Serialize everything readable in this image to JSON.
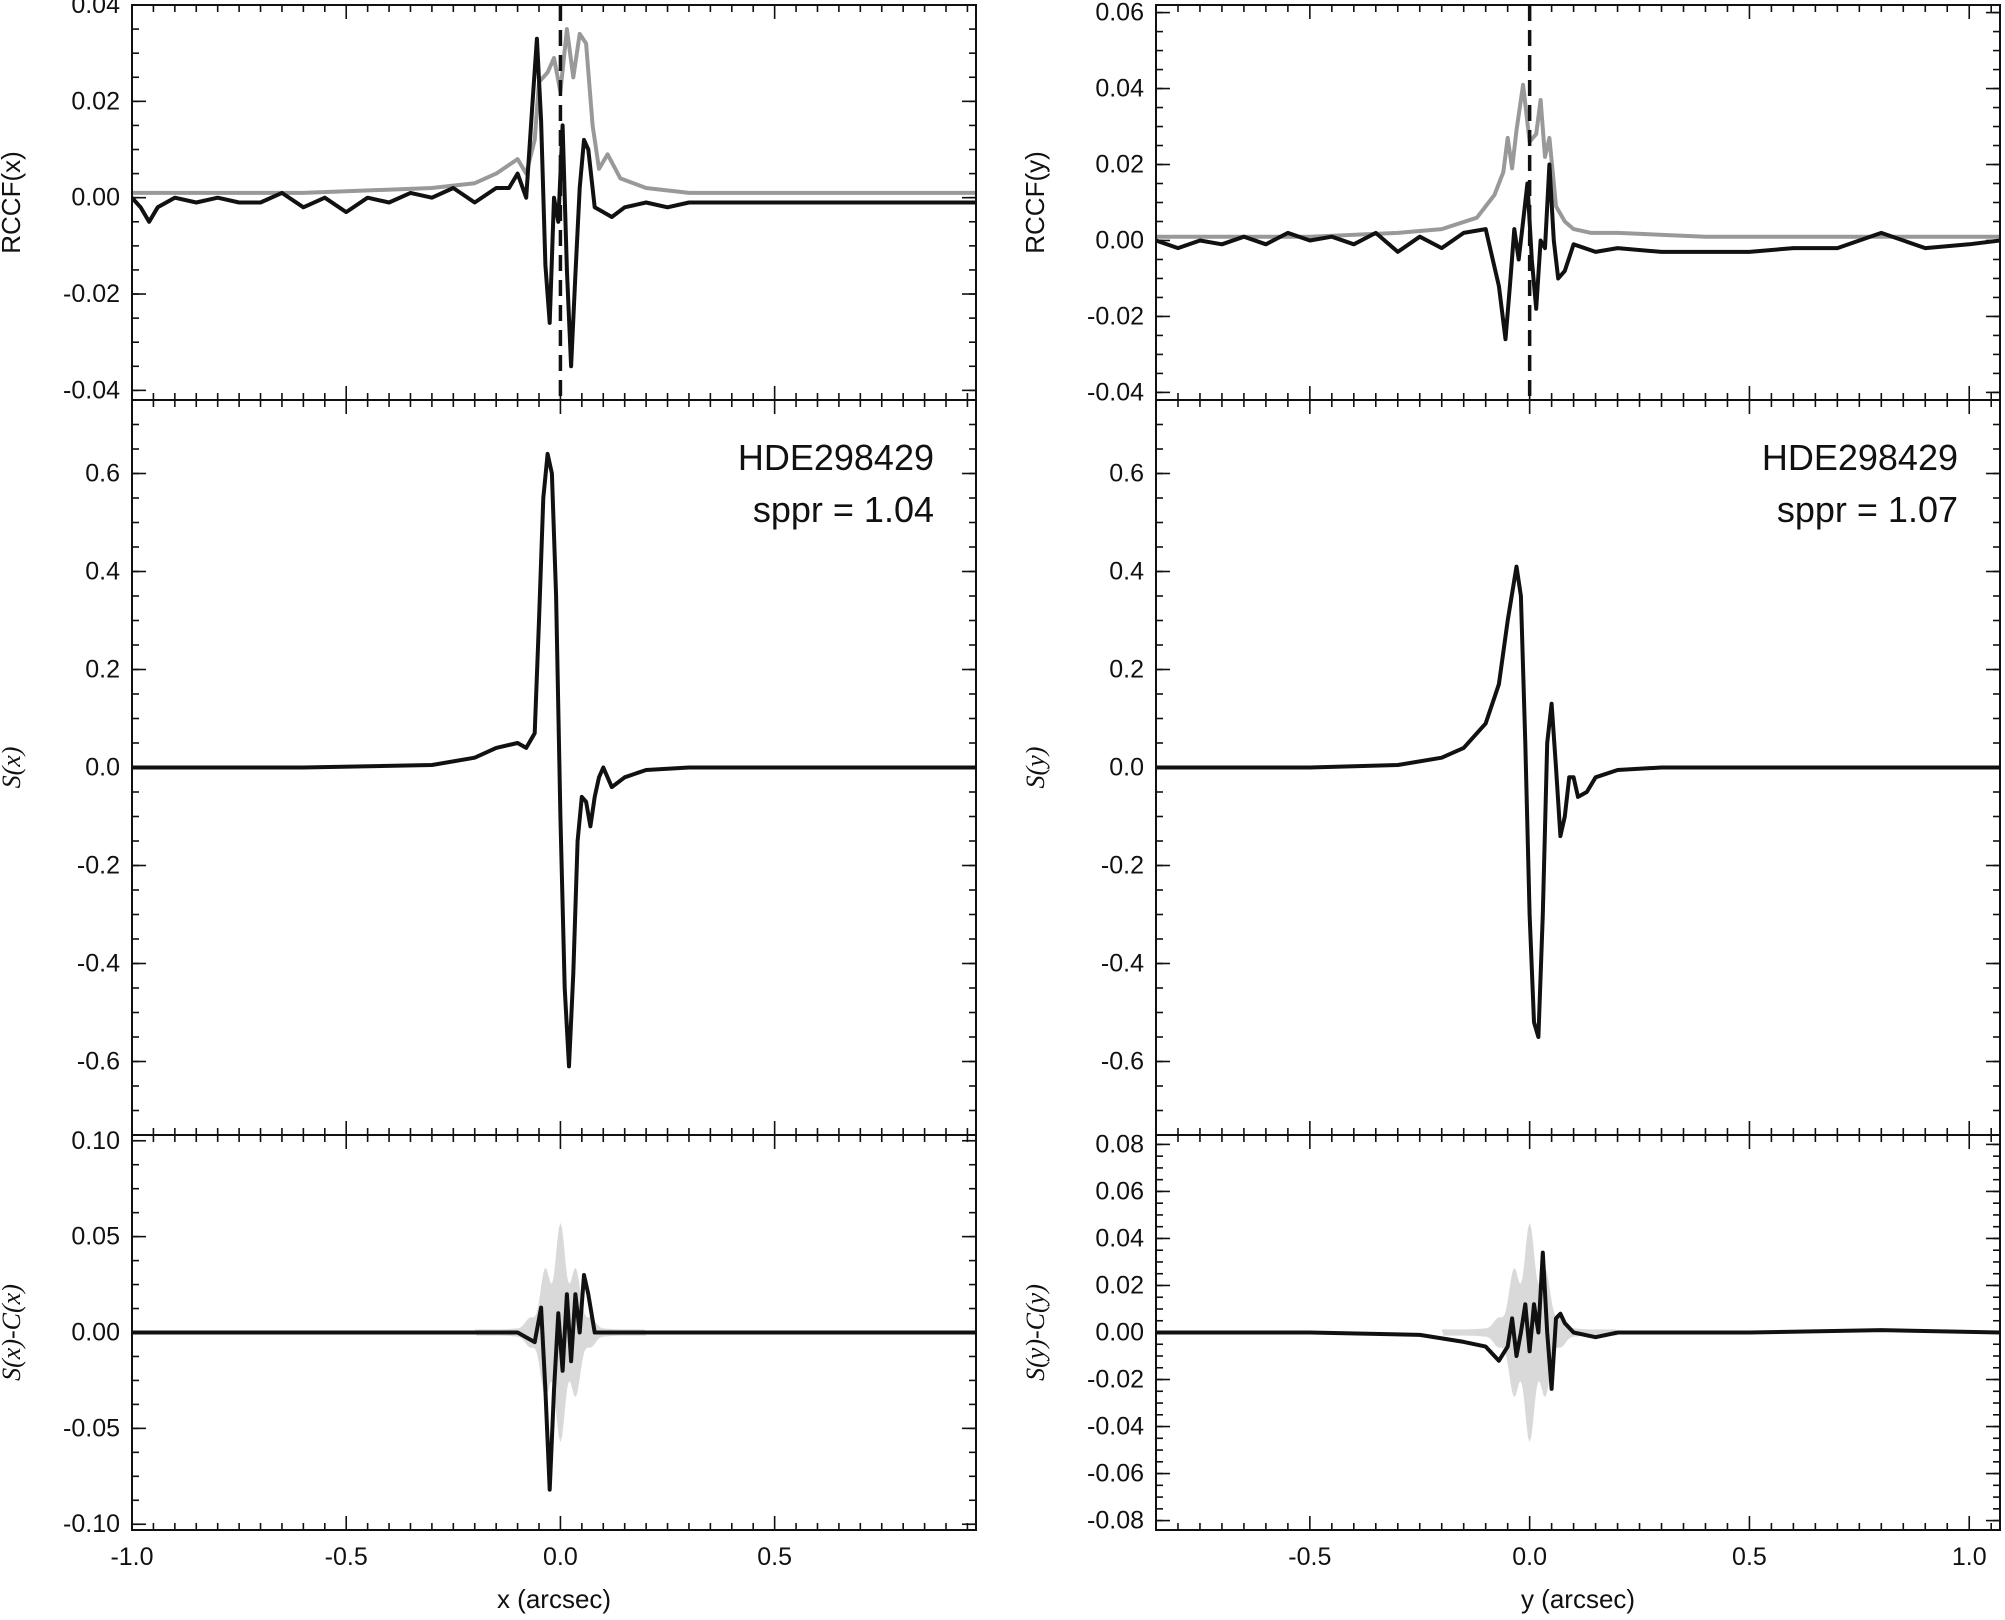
{
  "chart_data": [
    {
      "type": "line",
      "panel": "top-left",
      "ylabel": "RCCF(x)",
      "xlim": [
        -1.0,
        0.97
      ],
      "ylim": [
        -0.042,
        0.04
      ],
      "yticks": [
        "-0.04",
        "-0.02",
        "0.00",
        "0.02",
        "0.04"
      ],
      "vline_x": 0.0,
      "series": [
        {
          "color": "#999999",
          "x": [
            -1.0,
            -0.6,
            -0.3,
            -0.2,
            -0.15,
            -0.1,
            -0.08,
            -0.06,
            -0.05,
            -0.03,
            -0.015,
            0.0,
            0.015,
            0.03,
            0.045,
            0.06,
            0.075,
            0.09,
            0.11,
            0.14,
            0.2,
            0.3,
            0.5,
            0.97
          ],
          "y": [
            0.001,
            0.001,
            0.002,
            0.003,
            0.005,
            0.008,
            0.005,
            0.012,
            0.024,
            0.026,
            0.029,
            0.022,
            0.035,
            0.025,
            0.034,
            0.032,
            0.015,
            0.006,
            0.009,
            0.004,
            0.002,
            0.001,
            0.001,
            0.001
          ]
        },
        {
          "color": "#111111",
          "x": [
            -1.0,
            -0.98,
            -0.96,
            -0.94,
            -0.9,
            -0.85,
            -0.8,
            -0.75,
            -0.7,
            -0.65,
            -0.6,
            -0.55,
            -0.5,
            -0.45,
            -0.4,
            -0.35,
            -0.3,
            -0.25,
            -0.2,
            -0.15,
            -0.12,
            -0.1,
            -0.08,
            -0.065,
            -0.055,
            -0.045,
            -0.035,
            -0.025,
            -0.015,
            -0.005,
            0.005,
            0.015,
            0.025,
            0.035,
            0.045,
            0.055,
            0.065,
            0.08,
            0.1,
            0.12,
            0.15,
            0.2,
            0.25,
            0.3,
            0.4,
            0.5,
            0.6,
            0.7,
            0.8,
            0.9,
            0.97
          ],
          "y": [
            0.0,
            -0.002,
            -0.005,
            -0.002,
            0.0,
            -0.001,
            0.0,
            -0.001,
            -0.001,
            0.001,
            -0.002,
            0.0,
            -0.003,
            0.0,
            -0.001,
            0.001,
            0.0,
            0.002,
            -0.001,
            0.002,
            0.002,
            0.005,
            0.0,
            0.02,
            0.033,
            0.016,
            -0.014,
            -0.026,
            0.0,
            -0.005,
            0.015,
            -0.015,
            -0.035,
            -0.016,
            0.002,
            0.012,
            0.01,
            -0.002,
            -0.003,
            -0.004,
            -0.002,
            -0.001,
            -0.002,
            -0.001,
            -0.001,
            -0.001,
            -0.001,
            -0.001,
            -0.001,
            -0.001,
            -0.001
          ]
        }
      ]
    },
    {
      "type": "line",
      "panel": "middle-left",
      "ylabel": "S(x)",
      "xlim": [
        -1.0,
        0.97
      ],
      "ylim": [
        -0.75,
        0.75
      ],
      "yticks": [
        "-0.6",
        "-0.4",
        "-0.2",
        "0.0",
        "0.2",
        "0.4",
        "0.6"
      ],
      "annotations": [
        "HDE298429",
        "sppr = 1.04"
      ],
      "series": [
        {
          "color": "#111111",
          "x": [
            -1.0,
            -0.6,
            -0.3,
            -0.2,
            -0.15,
            -0.1,
            -0.08,
            -0.06,
            -0.05,
            -0.04,
            -0.03,
            -0.02,
            -0.01,
            0.0,
            0.01,
            0.02,
            0.03,
            0.04,
            0.05,
            0.06,
            0.07,
            0.08,
            0.09,
            0.1,
            0.12,
            0.15,
            0.2,
            0.3,
            0.5,
            0.97
          ],
          "y": [
            0.0,
            0.0,
            0.005,
            0.02,
            0.04,
            0.05,
            0.04,
            0.07,
            0.3,
            0.55,
            0.64,
            0.6,
            0.35,
            -0.1,
            -0.45,
            -0.61,
            -0.42,
            -0.15,
            -0.06,
            -0.07,
            -0.12,
            -0.06,
            -0.02,
            0.0,
            -0.04,
            -0.02,
            -0.005,
            0.0,
            0.0,
            0.0
          ]
        }
      ]
    },
    {
      "type": "line",
      "panel": "bottom-left",
      "ylabel": "S(x)-C(x)",
      "xlabel": "x (arcsec)",
      "xlim": [
        -1.0,
        0.97
      ],
      "ylim": [
        -0.103,
        0.103
      ],
      "xticks": [
        "-1.0",
        "-0.5",
        "0.0",
        "0.5"
      ],
      "yticks": [
        "-0.10",
        "-0.05",
        "0.00",
        "0.05",
        "0.10"
      ],
      "series": [
        {
          "color": "#111111",
          "x": [
            -1.0,
            -0.5,
            -0.1,
            -0.06,
            -0.045,
            -0.035,
            -0.025,
            -0.015,
            -0.005,
            0.005,
            0.015,
            0.025,
            0.035,
            0.045,
            0.055,
            0.065,
            0.08,
            0.1,
            0.2,
            0.5,
            0.97
          ],
          "y": [
            0.0,
            0.0,
            0.0,
            -0.005,
            0.013,
            -0.03,
            -0.082,
            -0.03,
            0.01,
            -0.02,
            0.02,
            -0.015,
            0.02,
            0.0,
            0.03,
            0.02,
            0.0,
            0.0,
            0.0,
            0.0,
            0.0
          ]
        }
      ]
    },
    {
      "type": "line",
      "panel": "top-right",
      "ylabel": "RCCF(y)",
      "xlim": [
        -0.85,
        1.07
      ],
      "ylim": [
        -0.042,
        0.062
      ],
      "yticks": [
        "-0.04",
        "-0.02",
        "0.00",
        "0.02",
        "0.04",
        "0.06"
      ],
      "vline_x": 0.0,
      "series": [
        {
          "color": "#999999",
          "x": [
            -0.85,
            -0.5,
            -0.3,
            -0.2,
            -0.12,
            -0.08,
            -0.06,
            -0.05,
            -0.04,
            -0.03,
            -0.015,
            0.0,
            0.015,
            0.025,
            0.035,
            0.045,
            0.06,
            0.08,
            0.1,
            0.14,
            0.2,
            0.4,
            0.7,
            1.07
          ],
          "y": [
            0.001,
            0.001,
            0.002,
            0.003,
            0.006,
            0.012,
            0.018,
            0.027,
            0.019,
            0.029,
            0.041,
            0.026,
            0.028,
            0.037,
            0.022,
            0.027,
            0.009,
            0.005,
            0.003,
            0.002,
            0.002,
            0.001,
            0.001,
            0.001
          ]
        },
        {
          "color": "#111111",
          "x": [
            -0.85,
            -0.8,
            -0.75,
            -0.7,
            -0.65,
            -0.6,
            -0.55,
            -0.5,
            -0.45,
            -0.4,
            -0.35,
            -0.3,
            -0.25,
            -0.2,
            -0.15,
            -0.1,
            -0.07,
            -0.055,
            -0.045,
            -0.035,
            -0.025,
            -0.015,
            -0.005,
            0.005,
            0.015,
            0.025,
            0.035,
            0.045,
            0.055,
            0.065,
            0.08,
            0.1,
            0.15,
            0.2,
            0.3,
            0.4,
            0.5,
            0.6,
            0.7,
            0.8,
            0.9,
            1.0,
            1.07
          ],
          "y": [
            0.0,
            -0.002,
            0.0,
            -0.001,
            0.001,
            -0.001,
            0.002,
            0.0,
            0.001,
            -0.001,
            0.002,
            -0.003,
            0.001,
            -0.002,
            0.002,
            0.003,
            -0.012,
            -0.026,
            -0.012,
            0.003,
            -0.005,
            0.005,
            0.015,
            -0.005,
            -0.018,
            0.0,
            -0.002,
            0.02,
            0.0,
            -0.01,
            -0.008,
            -0.001,
            -0.003,
            -0.002,
            -0.003,
            -0.003,
            -0.003,
            -0.002,
            -0.002,
            0.002,
            -0.002,
            -0.001,
            0.0
          ]
        }
      ]
    },
    {
      "type": "line",
      "panel": "middle-right",
      "ylabel": "S(y)",
      "xlim": [
        -0.85,
        1.07
      ],
      "ylim": [
        -0.75,
        0.75
      ],
      "yticks": [
        "-0.6",
        "-0.4",
        "-0.2",
        "0.0",
        "0.2",
        "0.4",
        "0.6"
      ],
      "annotations": [
        "HDE298429",
        "sppr = 1.07"
      ],
      "series": [
        {
          "color": "#111111",
          "x": [
            -0.85,
            -0.5,
            -0.3,
            -0.2,
            -0.15,
            -0.1,
            -0.07,
            -0.05,
            -0.03,
            -0.02,
            -0.01,
            0.0,
            0.01,
            0.02,
            0.03,
            0.04,
            0.05,
            0.06,
            0.07,
            0.08,
            0.09,
            0.1,
            0.11,
            0.13,
            0.15,
            0.2,
            0.3,
            0.5,
            0.8,
            1.07
          ],
          "y": [
            0.0,
            0.0,
            0.005,
            0.02,
            0.04,
            0.09,
            0.17,
            0.3,
            0.41,
            0.35,
            0.05,
            -0.3,
            -0.52,
            -0.55,
            -0.3,
            0.05,
            0.13,
            0.0,
            -0.14,
            -0.1,
            -0.02,
            -0.02,
            -0.06,
            -0.05,
            -0.02,
            -0.005,
            0.0,
            0.0,
            0.0,
            0.0
          ]
        }
      ]
    },
    {
      "type": "line",
      "panel": "bottom-right",
      "ylabel": "S(y)-C(y)",
      "xlabel": "y (arcsec)",
      "xlim": [
        -0.85,
        1.07
      ],
      "ylim": [
        -0.084,
        0.084
      ],
      "xticks": [
        "-0.5",
        "0.0",
        "0.5",
        "1.0"
      ],
      "yticks": [
        "-0.08",
        "-0.06",
        "-0.04",
        "-0.02",
        "0.00",
        "0.02",
        "0.04",
        "0.06",
        "0.08"
      ],
      "series": [
        {
          "color": "#111111",
          "x": [
            -0.85,
            -0.5,
            -0.25,
            -0.15,
            -0.1,
            -0.07,
            -0.05,
            -0.04,
            -0.03,
            -0.02,
            -0.01,
            0.0,
            0.01,
            0.02,
            0.03,
            0.04,
            0.05,
            0.06,
            0.07,
            0.08,
            0.1,
            0.15,
            0.2,
            0.3,
            0.5,
            0.8,
            1.07
          ],
          "y": [
            0.0,
            0.0,
            -0.001,
            -0.004,
            -0.006,
            -0.012,
            -0.006,
            0.006,
            -0.01,
            0.0,
            0.012,
            -0.008,
            0.012,
            0.0,
            0.034,
            0.0,
            -0.024,
            0.006,
            0.008,
            0.004,
            0.0,
            -0.002,
            0.0,
            0.0,
            0.0,
            0.001,
            0.0
          ]
        }
      ]
    }
  ]
}
